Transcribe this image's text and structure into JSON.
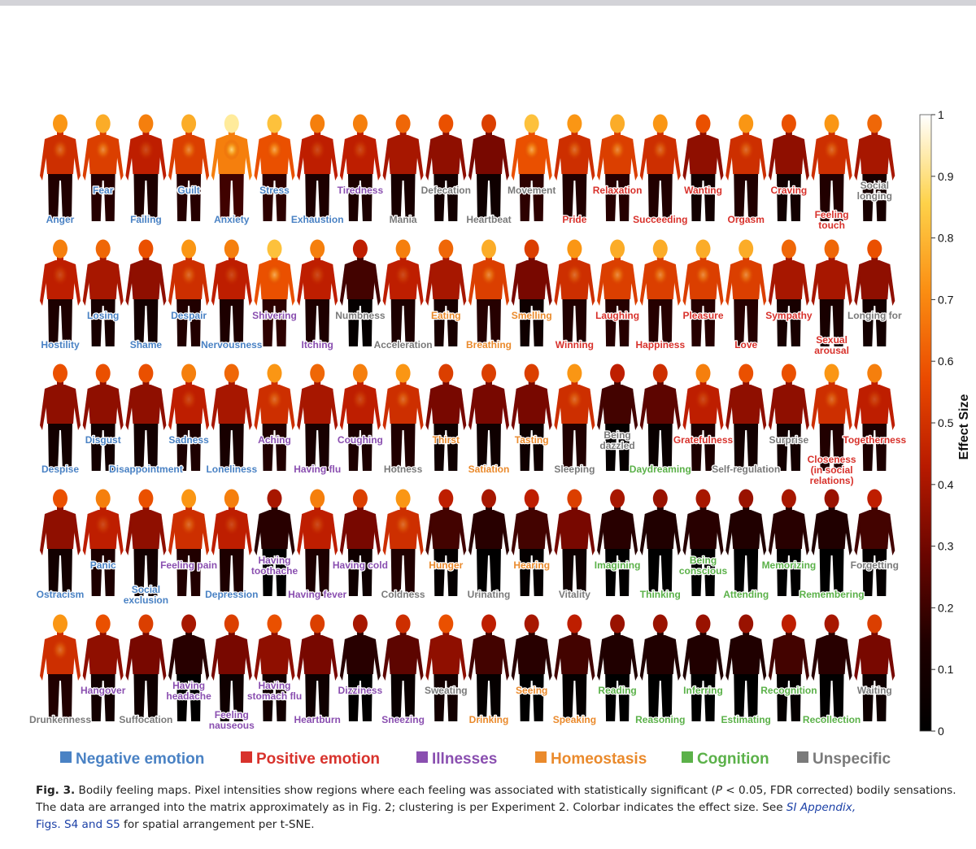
{
  "category_colors": {
    "negative": "#4a82c4",
    "positive": "#d8322c",
    "illness": "#8a4fb0",
    "homeostasis": "#ea8a2c",
    "cognition": "#5bb149",
    "unspecific": "#7a7a7a"
  },
  "legend": [
    {
      "label": "Negative emotion",
      "category": "negative"
    },
    {
      "label": "Positive emotion",
      "category": "positive"
    },
    {
      "label": "Illnesses",
      "category": "illness"
    },
    {
      "label": "Homeostasis",
      "category": "homeostasis"
    },
    {
      "label": "Cognition",
      "category": "cognition"
    },
    {
      "label": "Unspecific",
      "category": "unspecific"
    }
  ],
  "colorbar": {
    "title": "Effect Size",
    "ticks": [
      "0",
      "0.1",
      "0.2",
      "0.3",
      "0.4",
      "0.5",
      "0.6",
      "0.7",
      "0.8",
      "0.9",
      "1"
    ],
    "stops": [
      "#000000",
      "#1e0000",
      "#6a0500",
      "#b81a00",
      "#ea4a00",
      "#fb8e12",
      "#fed24a",
      "#ffffff"
    ]
  },
  "rows": [
    {
      "figures": [
        {
          "label": "Anger",
          "category": "negative",
          "intensity": 0.5
        },
        {
          "label": "Fear",
          "category": "negative",
          "intensity": 0.55
        },
        {
          "label": "Failing",
          "category": "negative",
          "intensity": 0.45
        },
        {
          "label": "Guilt",
          "category": "negative",
          "intensity": 0.55
        },
        {
          "label": "Anxiety",
          "category": "negative",
          "intensity": 0.7
        },
        {
          "label": "Stress",
          "category": "negative",
          "intensity": 0.6
        },
        {
          "label": "Exhaustion",
          "category": "negative",
          "intensity": 0.45
        },
        {
          "label": "Tiredness",
          "category": "illness",
          "intensity": 0.45
        },
        {
          "label": "Mania",
          "category": "unspecific",
          "intensity": 0.4
        },
        {
          "label": "Defecation",
          "category": "unspecific",
          "intensity": 0.35
        },
        {
          "label": "Heartbeat",
          "category": "unspecific",
          "intensity": 0.3
        },
        {
          "label": "Movement",
          "category": "unspecific",
          "intensity": 0.6
        },
        {
          "label": "Pride",
          "category": "positive",
          "intensity": 0.5
        },
        {
          "label": "Relaxation",
          "category": "positive",
          "intensity": 0.55
        },
        {
          "label": "Succeeding",
          "category": "positive",
          "intensity": 0.5
        },
        {
          "label": "Wanting",
          "category": "positive",
          "intensity": 0.35
        },
        {
          "label": "Orgasm",
          "category": "positive",
          "intensity": 0.5
        },
        {
          "label": "Craving",
          "category": "positive",
          "intensity": 0.35
        },
        {
          "label": "Feeling touch",
          "category": "positive",
          "intensity": 0.5
        },
        {
          "label": "Social longing",
          "category": "unspecific",
          "intensity": 0.4
        }
      ]
    },
    {
      "figures": [
        {
          "label": "Hostility",
          "category": "negative",
          "intensity": 0.45
        },
        {
          "label": "Losing",
          "category": "negative",
          "intensity": 0.4
        },
        {
          "label": "Shame",
          "category": "negative",
          "intensity": 0.35
        },
        {
          "label": "Despair",
          "category": "negative",
          "intensity": 0.5
        },
        {
          "label": "Nervousness",
          "category": "negative",
          "intensity": 0.45
        },
        {
          "label": "Shivering",
          "category": "illness",
          "intensity": 0.6
        },
        {
          "label": "Itching",
          "category": "illness",
          "intensity": 0.45
        },
        {
          "label": "Numbness",
          "category": "unspecific",
          "intensity": 0.2
        },
        {
          "label": "Acceleration",
          "category": "unspecific",
          "intensity": 0.45
        },
        {
          "label": "Eating",
          "category": "homeostasis",
          "intensity": 0.4
        },
        {
          "label": "Breathing",
          "category": "homeostasis",
          "intensity": 0.55
        },
        {
          "label": "Smelling",
          "category": "homeostasis",
          "intensity": 0.3
        },
        {
          "label": "Winning",
          "category": "positive",
          "intensity": 0.5
        },
        {
          "label": "Laughing",
          "category": "positive",
          "intensity": 0.55
        },
        {
          "label": "Happiness",
          "category": "positive",
          "intensity": 0.55
        },
        {
          "label": "Pleasure",
          "category": "positive",
          "intensity": 0.55
        },
        {
          "label": "Love",
          "category": "positive",
          "intensity": 0.55
        },
        {
          "label": "Sympathy",
          "category": "positive",
          "intensity": 0.4
        },
        {
          "label": "Sexual arousal",
          "category": "positive",
          "intensity": 0.4
        },
        {
          "label": "Longing for",
          "category": "unspecific",
          "intensity": 0.35
        }
      ]
    },
    {
      "figures": [
        {
          "label": "Despise",
          "category": "negative",
          "intensity": 0.35
        },
        {
          "label": "Disgust",
          "category": "negative",
          "intensity": 0.35
        },
        {
          "label": "Disappointment",
          "category": "negative",
          "intensity": 0.35
        },
        {
          "label": "Sadness",
          "category": "negative",
          "intensity": 0.45
        },
        {
          "label": "Loneliness",
          "category": "negative",
          "intensity": 0.4
        },
        {
          "label": "Aching",
          "category": "illness",
          "intensity": 0.5
        },
        {
          "label": "Having flu",
          "category": "illness",
          "intensity": 0.4
        },
        {
          "label": "Coughing",
          "category": "illness",
          "intensity": 0.45
        },
        {
          "label": "Hotness",
          "category": "unspecific",
          "intensity": 0.5
        },
        {
          "label": "Thirst",
          "category": "homeostasis",
          "intensity": 0.3
        },
        {
          "label": "Satiation",
          "category": "homeostasis",
          "intensity": 0.3
        },
        {
          "label": "Tasting",
          "category": "homeostasis",
          "intensity": 0.3
        },
        {
          "label": "Sleeping",
          "category": "unspecific",
          "intensity": 0.5
        },
        {
          "label": "Being dazzled",
          "category": "unspecific",
          "intensity": 0.2
        },
        {
          "label": "Daydreaming",
          "category": "cognition",
          "intensity": 0.25
        },
        {
          "label": "Gratefulness",
          "category": "positive",
          "intensity": 0.45
        },
        {
          "label": "Self-regulation",
          "category": "unspecific",
          "intensity": 0.35
        },
        {
          "label": "Surprise",
          "category": "unspecific",
          "intensity": 0.35
        },
        {
          "label": "Closeness (in social relations)",
          "category": "positive",
          "intensity": 0.5
        },
        {
          "label": "Togetherness",
          "category": "positive",
          "intensity": 0.45
        }
      ]
    },
    {
      "figures": [
        {
          "label": "Ostracism",
          "category": "negative",
          "intensity": 0.35
        },
        {
          "label": "Panic",
          "category": "negative",
          "intensity": 0.45
        },
        {
          "label": "Social exclusion",
          "category": "negative",
          "intensity": 0.35
        },
        {
          "label": "Feeling pain",
          "category": "illness",
          "intensity": 0.5
        },
        {
          "label": "Depression",
          "category": "negative",
          "intensity": 0.45
        },
        {
          "label": "Having toothache",
          "category": "illness",
          "intensity": 0.15
        },
        {
          "label": "Having fever",
          "category": "illness",
          "intensity": 0.45
        },
        {
          "label": "Having cold",
          "category": "illness",
          "intensity": 0.3
        },
        {
          "label": "Coldness",
          "category": "unspecific",
          "intensity": 0.5
        },
        {
          "label": "Hunger",
          "category": "homeostasis",
          "intensity": 0.2
        },
        {
          "label": "Urinating",
          "category": "unspecific",
          "intensity": 0.15
        },
        {
          "label": "Hearing",
          "category": "homeostasis",
          "intensity": 0.2
        },
        {
          "label": "Vitality",
          "category": "unspecific",
          "intensity": 0.3
        },
        {
          "label": "Imagining",
          "category": "cognition",
          "intensity": 0.15
        },
        {
          "label": "Thinking",
          "category": "cognition",
          "intensity": 0.12
        },
        {
          "label": "Being conscious",
          "category": "cognition",
          "intensity": 0.15
        },
        {
          "label": "Attending",
          "category": "cognition",
          "intensity": 0.12
        },
        {
          "label": "Memorizing",
          "category": "cognition",
          "intensity": 0.15
        },
        {
          "label": "Remembering",
          "category": "cognition",
          "intensity": 0.12
        },
        {
          "label": "Forgetting",
          "category": "unspecific",
          "intensity": 0.2
        }
      ]
    },
    {
      "figures": [
        {
          "label": "Drunkenness",
          "category": "unspecific",
          "intensity": 0.5
        },
        {
          "label": "Hangover",
          "category": "illness",
          "intensity": 0.35
        },
        {
          "label": "Suffocation",
          "category": "unspecific",
          "intensity": 0.3
        },
        {
          "label": "Having headache",
          "category": "illness",
          "intensity": 0.15
        },
        {
          "label": "Feeling nauseous",
          "category": "illness",
          "intensity": 0.3
        },
        {
          "label": "Having stomach flu",
          "category": "illness",
          "intensity": 0.35
        },
        {
          "label": "Heartburn",
          "category": "illness",
          "intensity": 0.3
        },
        {
          "label": "Dizziness",
          "category": "illness",
          "intensity": 0.15
        },
        {
          "label": "Sneezing",
          "category": "illness",
          "intensity": 0.25
        },
        {
          "label": "Sweating",
          "category": "unspecific",
          "intensity": 0.35
        },
        {
          "label": "Drinking",
          "category": "homeostasis",
          "intensity": 0.2
        },
        {
          "label": "Seeing",
          "category": "homeostasis",
          "intensity": 0.15
        },
        {
          "label": "Speaking",
          "category": "homeostasis",
          "intensity": 0.2
        },
        {
          "label": "Reading",
          "category": "cognition",
          "intensity": 0.12
        },
        {
          "label": "Reasoning",
          "category": "cognition",
          "intensity": 0.12
        },
        {
          "label": "Inferring",
          "category": "cognition",
          "intensity": 0.12
        },
        {
          "label": "Estimating",
          "category": "cognition",
          "intensity": 0.12
        },
        {
          "label": "Recognition",
          "category": "cognition",
          "intensity": 0.2
        },
        {
          "label": "Recollection",
          "category": "cognition",
          "intensity": 0.15
        },
        {
          "label": "Waiting",
          "category": "unspecific",
          "intensity": 0.3
        }
      ]
    }
  ],
  "caption": {
    "fig": "Fig. 3.",
    "text1": "Bodily feeling maps. Pixel intensities show regions where each feeling was associated with statistically significant (",
    "p": "P",
    "text2": " < 0.05, FDR corrected) bodily sensations. The data are arranged into the matrix approximately as in Fig. 2; clustering is per Experiment 2. Colorbar indicates the effect size. See ",
    "link_italic": "SI Appendix,",
    "link_plain": "Figs. S4 and S5",
    "text3": " for spatial arrangement per t-SNE."
  }
}
